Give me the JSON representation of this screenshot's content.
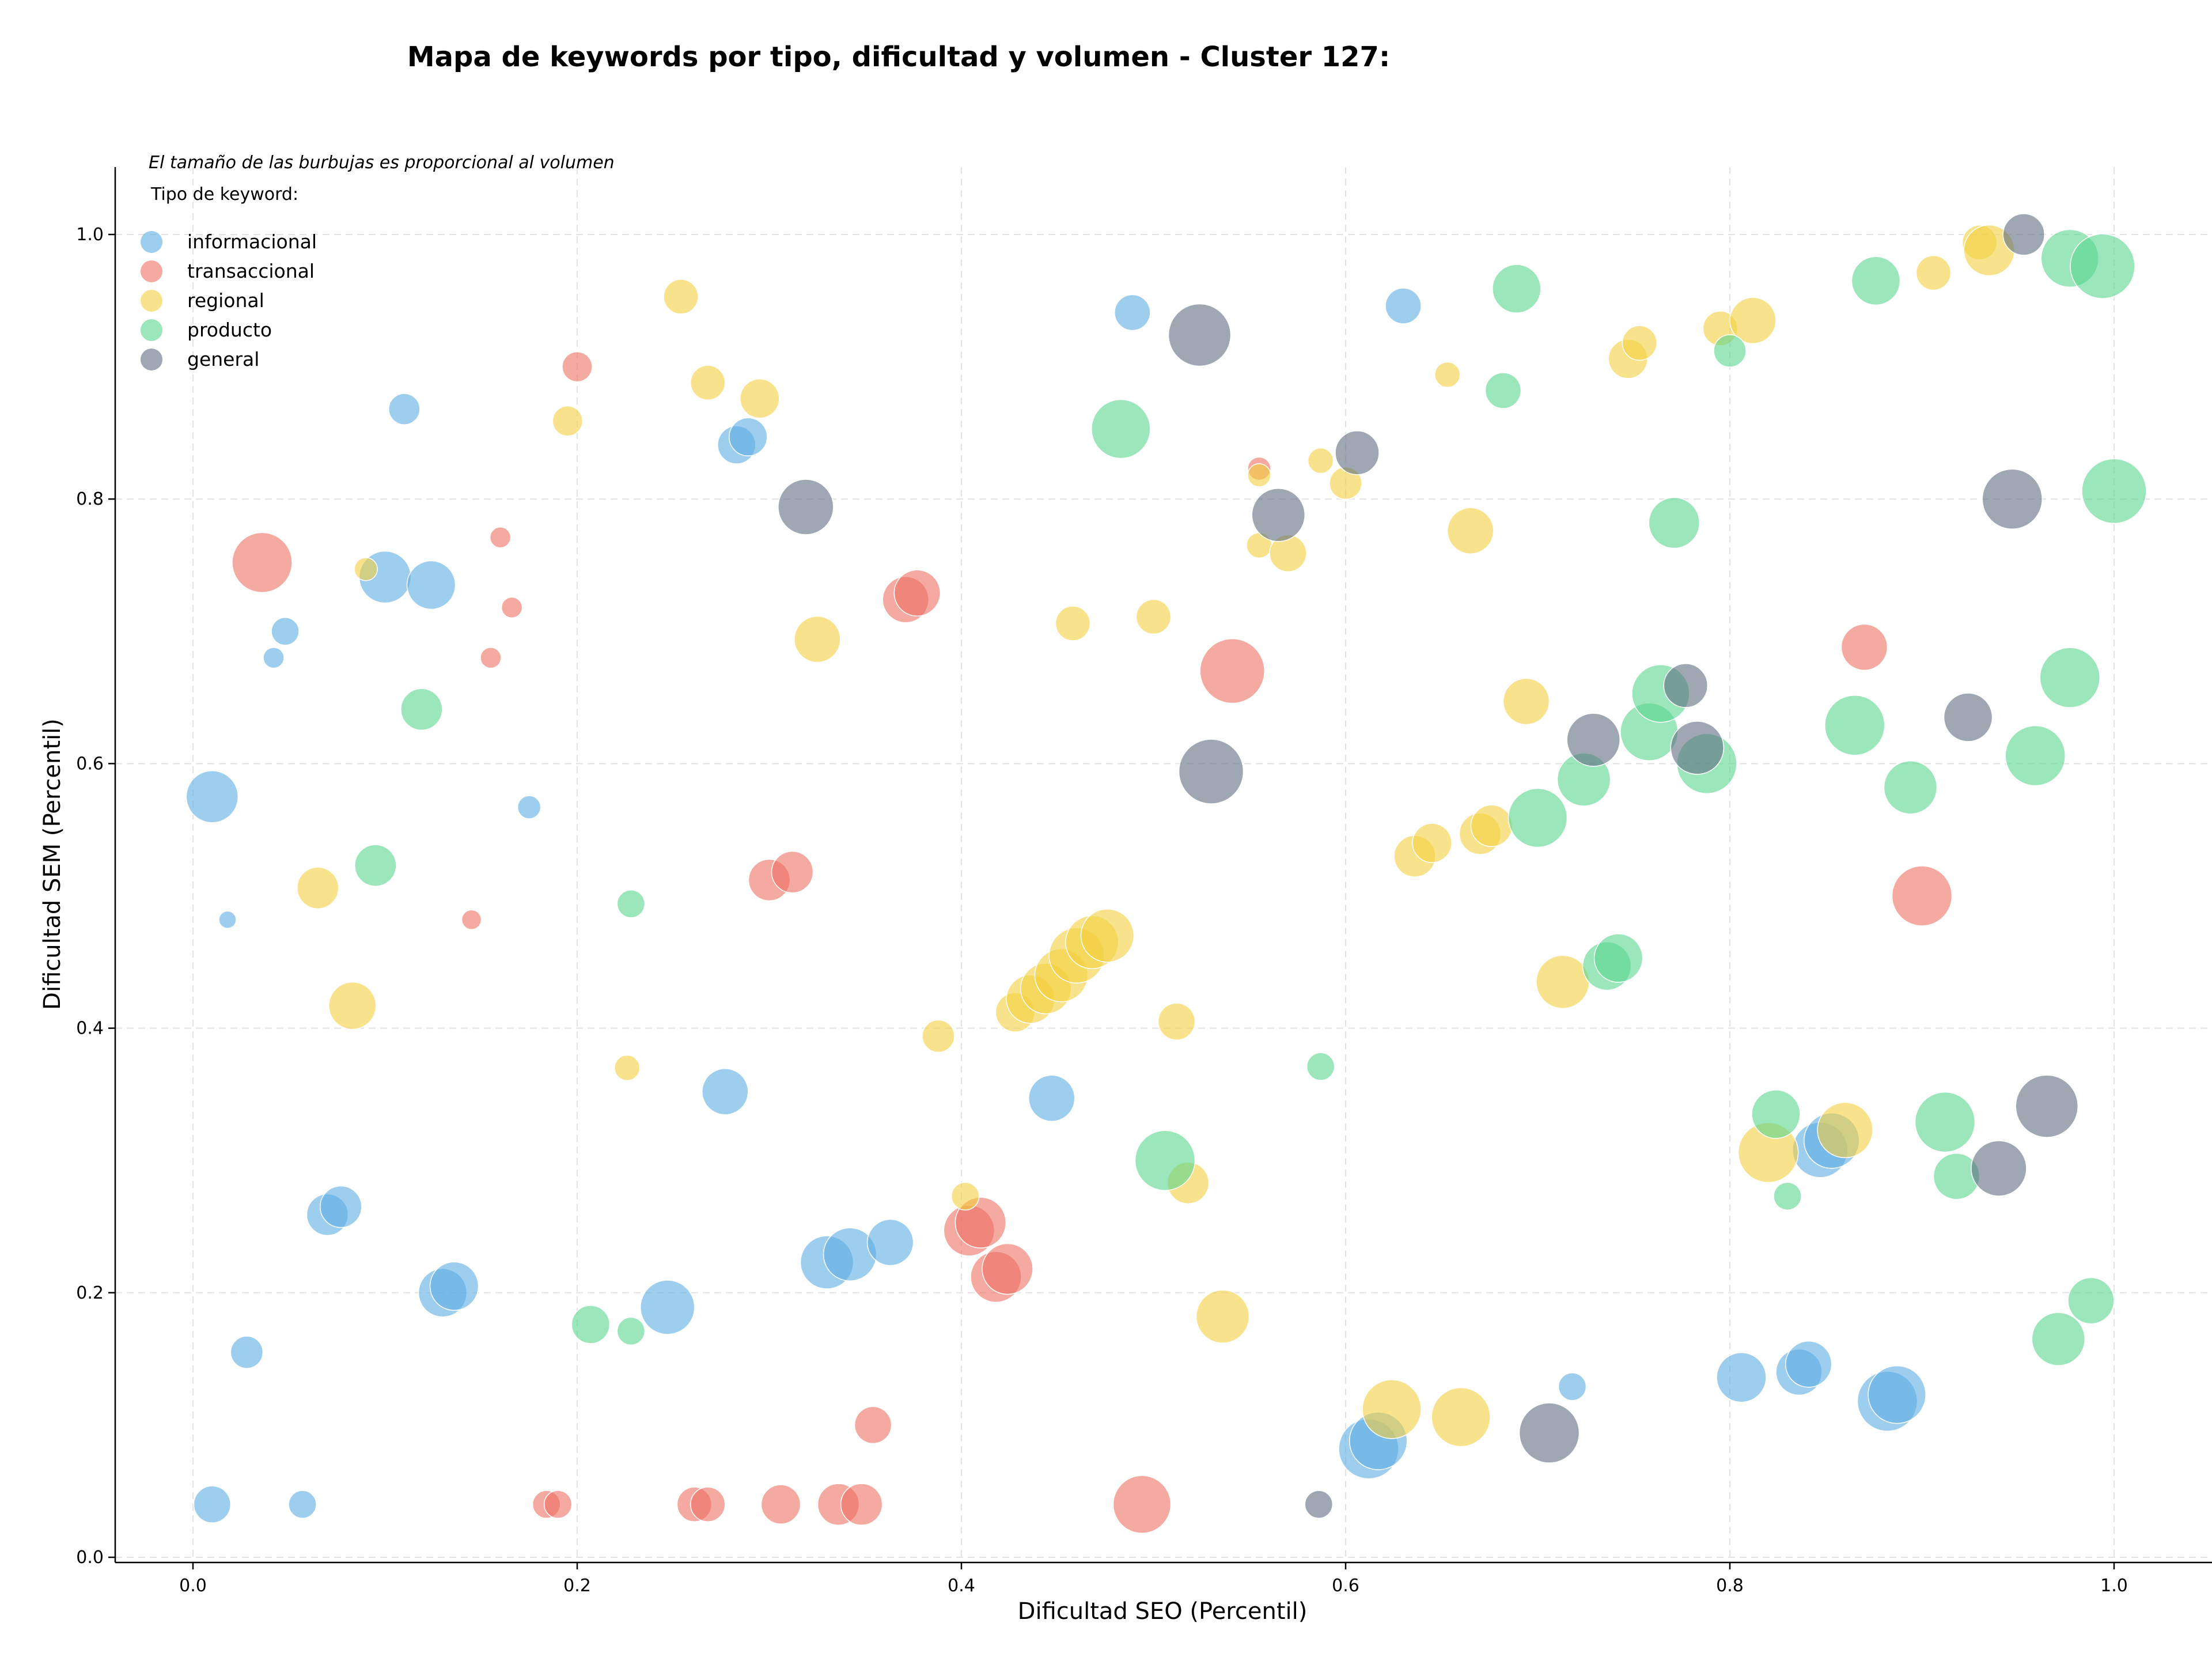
{
  "chart_data": {
    "type": "scatter",
    "title": "Mapa de keywords por tipo, dificultad y volumen - Cluster 127:",
    "xlabel": "Dificultad SEO (Percentil)",
    "ylabel": "Dificultad SEM (Percentil)",
    "xlim": [
      -0.04,
      1.05
    ],
    "ylim": [
      -0.01,
      1.05
    ],
    "xticks": [
      0.0,
      0.2,
      0.4,
      0.6,
      0.8,
      1.0
    ],
    "yticks": [
      0.0,
      0.2,
      0.4,
      0.6,
      0.8,
      1.0
    ],
    "xtick_labels": [
      "0.0",
      "0.2",
      "0.4",
      "0.6",
      "0.8",
      "1.0"
    ],
    "ytick_labels": [
      "0.0",
      "0.2",
      "0.4",
      "0.6",
      "0.8",
      "1.0"
    ],
    "grid": true,
    "annotation": "El tamaño de las burbujas es proporcional al volumen",
    "legend": {
      "title": "Tipo de keyword:",
      "position": "top-left"
    },
    "series": [
      {
        "name": "informacional",
        "color": "#5DADE2",
        "points": [
          [
            0.01,
            0.04,
            32
          ],
          [
            0.01,
            0.575,
            45
          ],
          [
            0.018,
            0.482,
            15
          ],
          [
            0.028,
            0.155,
            28
          ],
          [
            0.042,
            0.68,
            18
          ],
          [
            0.048,
            0.7,
            24
          ],
          [
            0.057,
            0.04,
            24
          ],
          [
            0.07,
            0.259,
            36
          ],
          [
            0.077,
            0.265,
            36
          ],
          [
            0.1,
            0.741,
            45
          ],
          [
            0.11,
            0.868,
            27
          ],
          [
            0.124,
            0.735,
            42
          ],
          [
            0.13,
            0.2,
            42
          ],
          [
            0.136,
            0.205,
            42
          ],
          [
            0.175,
            0.567,
            20
          ],
          [
            0.247,
            0.189,
            47
          ],
          [
            0.277,
            0.352,
            40
          ],
          [
            0.283,
            0.841,
            33
          ],
          [
            0.289,
            0.847,
            33
          ],
          [
            0.33,
            0.223,
            46
          ],
          [
            0.342,
            0.229,
            46
          ],
          [
            0.363,
            0.238,
            40
          ],
          [
            0.447,
            0.347,
            40
          ],
          [
            0.489,
            0.941,
            31
          ],
          [
            0.63,
            0.946,
            31
          ],
          [
            0.612,
            0.082,
            52
          ],
          [
            0.617,
            0.088,
            50
          ],
          [
            0.718,
            0.129,
            24
          ],
          [
            0.806,
            0.136,
            43
          ],
          [
            0.836,
            0.14,
            40
          ],
          [
            0.841,
            0.146,
            40
          ],
          [
            0.847,
            0.308,
            48
          ],
          [
            0.853,
            0.315,
            48
          ],
          [
            0.882,
            0.118,
            52
          ],
          [
            0.887,
            0.123,
            50
          ]
        ]
      },
      {
        "name": "transaccional",
        "color": "#EC7063",
        "points": [
          [
            0.036,
            0.752,
            52
          ],
          [
            0.16,
            0.771,
            18
          ],
          [
            0.166,
            0.718,
            18
          ],
          [
            0.155,
            0.68,
            18
          ],
          [
            0.145,
            0.482,
            17
          ],
          [
            0.2,
            0.9,
            26
          ],
          [
            0.184,
            0.04,
            24
          ],
          [
            0.19,
            0.04,
            24
          ],
          [
            0.261,
            0.04,
            30
          ],
          [
            0.268,
            0.04,
            30
          ],
          [
            0.3,
            0.512,
            36
          ],
          [
            0.312,
            0.518,
            36
          ],
          [
            0.306,
            0.04,
            34
          ],
          [
            0.336,
            0.04,
            36
          ],
          [
            0.348,
            0.04,
            36
          ],
          [
            0.354,
            0.1,
            32
          ],
          [
            0.371,
            0.724,
            40
          ],
          [
            0.377,
            0.729,
            40
          ],
          [
            0.404,
            0.247,
            44
          ],
          [
            0.41,
            0.253,
            44
          ],
          [
            0.418,
            0.212,
            44
          ],
          [
            0.424,
            0.218,
            44
          ],
          [
            0.494,
            0.04,
            50
          ],
          [
            0.541,
            0.67,
            56
          ],
          [
            0.555,
            0.823,
            20
          ],
          [
            0.87,
            0.688,
            40
          ],
          [
            0.9,
            0.5,
            52
          ]
        ]
      },
      {
        "name": "regional",
        "color": "#F4D03F",
        "points": [
          [
            0.065,
            0.506,
            36
          ],
          [
            0.083,
            0.417,
            41
          ],
          [
            0.09,
            0.747,
            20
          ],
          [
            0.195,
            0.859,
            26
          ],
          [
            0.226,
            0.37,
            22
          ],
          [
            0.254,
            0.953,
            30
          ],
          [
            0.268,
            0.888,
            30
          ],
          [
            0.295,
            0.876,
            34
          ],
          [
            0.325,
            0.694,
            40
          ],
          [
            0.388,
            0.394,
            28
          ],
          [
            0.402,
            0.273,
            24
          ],
          [
            0.428,
            0.412,
            34
          ],
          [
            0.436,
            0.422,
            42
          ],
          [
            0.444,
            0.43,
            44
          ],
          [
            0.452,
            0.44,
            46
          ],
          [
            0.46,
            0.455,
            48
          ],
          [
            0.468,
            0.465,
            46
          ],
          [
            0.476,
            0.47,
            46
          ],
          [
            0.458,
            0.706,
            30
          ],
          [
            0.5,
            0.711,
            30
          ],
          [
            0.512,
            0.405,
            32
          ],
          [
            0.518,
            0.283,
            36
          ],
          [
            0.536,
            0.182,
            46
          ],
          [
            0.555,
            0.818,
            20
          ],
          [
            0.555,
            0.765,
            22
          ],
          [
            0.57,
            0.759,
            32
          ],
          [
            0.587,
            0.829,
            22
          ],
          [
            0.6,
            0.812,
            28
          ],
          [
            0.624,
            0.112,
            51
          ],
          [
            0.636,
            0.53,
            36
          ],
          [
            0.645,
            0.54,
            34
          ],
          [
            0.66,
            0.106,
            51
          ],
          [
            0.653,
            0.894,
            22
          ],
          [
            0.665,
            0.776,
            40
          ],
          [
            0.67,
            0.547,
            36
          ],
          [
            0.676,
            0.553,
            36
          ],
          [
            0.694,
            0.647,
            40
          ],
          [
            0.713,
            0.435,
            46
          ],
          [
            0.747,
            0.906,
            34
          ],
          [
            0.753,
            0.918,
            30
          ],
          [
            0.795,
            0.929,
            30
          ],
          [
            0.812,
            0.935,
            40
          ],
          [
            0.82,
            0.306,
            52
          ],
          [
            0.86,
            0.323,
            48
          ],
          [
            0.906,
            0.971,
            30
          ],
          [
            0.93,
            0.994,
            30
          ],
          [
            0.935,
            0.988,
            44
          ]
        ]
      },
      {
        "name": "producto",
        "color": "#58D68D",
        "points": [
          [
            0.095,
            0.523,
            36
          ],
          [
            0.119,
            0.641,
            36
          ],
          [
            0.207,
            0.176,
            33
          ],
          [
            0.228,
            0.494,
            24
          ],
          [
            0.228,
            0.171,
            24
          ],
          [
            0.483,
            0.853,
            51
          ],
          [
            0.506,
            0.3,
            52
          ],
          [
            0.587,
            0.371,
            24
          ],
          [
            0.682,
            0.882,
            31
          ],
          [
            0.689,
            0.959,
            42
          ],
          [
            0.7,
            0.559,
            51
          ],
          [
            0.724,
            0.588,
            46
          ],
          [
            0.736,
            0.447,
            42
          ],
          [
            0.742,
            0.453,
            42
          ],
          [
            0.758,
            0.624,
            50
          ],
          [
            0.764,
            0.653,
            50
          ],
          [
            0.771,
            0.782,
            44
          ],
          [
            0.788,
            0.6,
            52
          ],
          [
            0.8,
            0.912,
            28
          ],
          [
            0.824,
            0.335,
            42
          ],
          [
            0.83,
            0.273,
            24
          ],
          [
            0.865,
            0.629,
            52
          ],
          [
            0.876,
            0.965,
            42
          ],
          [
            0.894,
            0.582,
            46
          ],
          [
            0.912,
            0.329,
            52
          ],
          [
            0.918,
            0.288,
            40
          ],
          [
            0.959,
            0.606,
            52
          ],
          [
            0.971,
            0.165,
            46
          ],
          [
            0.977,
            0.665,
            52
          ],
          [
            0.977,
            0.982,
            50
          ],
          [
            0.994,
            0.976,
            56
          ],
          [
            0.988,
            0.194,
            40
          ],
          [
            1.0,
            0.806,
            56
          ]
        ]
      },
      {
        "name": "general",
        "color": "#5D6D7E",
        "points": [
          [
            0.319,
            0.794,
            48
          ],
          [
            0.524,
            0.924,
            54
          ],
          [
            0.53,
            0.594,
            56
          ],
          [
            0.565,
            0.788,
            46
          ],
          [
            0.606,
            0.835,
            38
          ],
          [
            0.586,
            0.04,
            24
          ],
          [
            0.706,
            0.094,
            52
          ],
          [
            0.729,
            0.618,
            46
          ],
          [
            0.777,
            0.659,
            38
          ],
          [
            0.783,
            0.612,
            46
          ],
          [
            0.924,
            0.635,
            42
          ],
          [
            0.94,
            0.294,
            48
          ],
          [
            0.947,
            0.8,
            52
          ],
          [
            0.953,
            1.0,
            36
          ],
          [
            0.965,
            0.341,
            54
          ]
        ]
      }
    ]
  }
}
